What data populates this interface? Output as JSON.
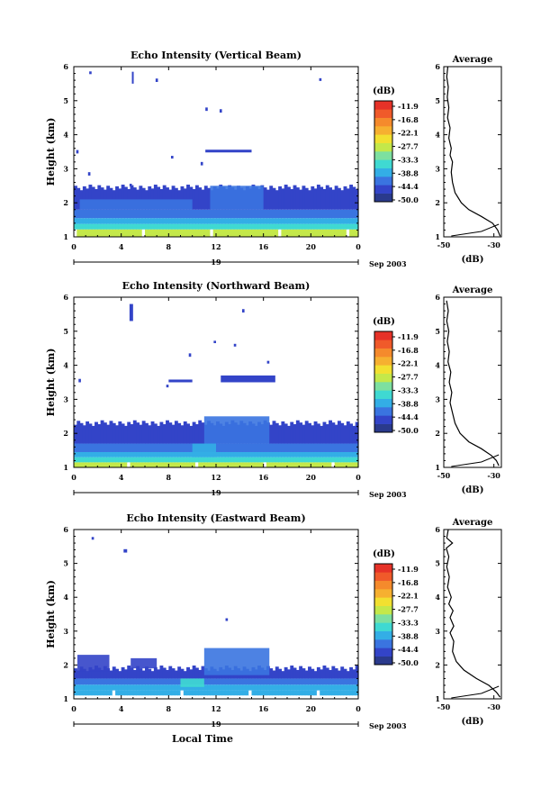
{
  "chart_data": [
    {
      "type": "heatmap",
      "title": "Echo Intensity (Vertical Beam)",
      "xlabel": "",
      "ylabel": "Height (km)",
      "xlim": [
        0,
        24
      ],
      "ylim": [
        1,
        6
      ],
      "xticks": [
        "0",
        "4",
        "8",
        "12",
        "16",
        "20",
        "0"
      ],
      "yticks": [
        "1",
        "2",
        "3",
        "4",
        "5",
        "6"
      ],
      "date_label": "19",
      "date_suffix": "Sep 2003",
      "colorbar": {
        "unit": "(dB)",
        "labels": [
          "-11.9",
          "-16.8",
          "-22.1",
          "-27.7",
          "-33.3",
          "-38.8",
          "-44.4",
          "-50.0"
        ]
      },
      "layers": [
        {
          "h0": 1.0,
          "h1": 1.22,
          "level": 6
        },
        {
          "h0": 1.22,
          "h1": 1.38,
          "level": 4
        },
        {
          "h0": 1.38,
          "h1": 1.55,
          "level": 3
        },
        {
          "h0": 1.55,
          "h1": 1.8,
          "level": 2
        },
        {
          "h0": 1.8,
          "h1": 2.45,
          "level": 1
        }
      ],
      "patches": [
        {
          "t0": 11.5,
          "t1": 16.0,
          "h0": 1.8,
          "h1": 2.5,
          "level": 2
        },
        {
          "t0": 0.5,
          "t1": 10.0,
          "h0": 1.8,
          "h1": 2.1,
          "level": 2
        }
      ],
      "speckles": [
        {
          "t0": 4.9,
          "t1": 5.0,
          "h0": 5.5,
          "h1": 5.85
        },
        {
          "t0": 1.3,
          "t1": 1.5,
          "h0": 5.78,
          "h1": 5.86
        },
        {
          "t0": 6.9,
          "t1": 7.1,
          "h0": 5.55,
          "h1": 5.65
        },
        {
          "t0": 11.1,
          "t1": 11.3,
          "h0": 4.7,
          "h1": 4.8
        },
        {
          "t0": 12.3,
          "t1": 12.5,
          "h0": 4.65,
          "h1": 4.75
        },
        {
          "t0": 20.7,
          "t1": 20.9,
          "h0": 5.58,
          "h1": 5.66
        },
        {
          "t0": 11.1,
          "t1": 15.0,
          "h0": 3.48,
          "h1": 3.56
        },
        {
          "t0": 8.2,
          "t1": 8.4,
          "h0": 3.3,
          "h1": 3.38
        },
        {
          "t0": 10.7,
          "t1": 10.9,
          "h0": 3.1,
          "h1": 3.2
        },
        {
          "t0": 0.2,
          "t1": 0.4,
          "h0": 3.45,
          "h1": 3.55
        },
        {
          "t0": 1.2,
          "t1": 1.4,
          "h0": 2.8,
          "h1": 2.9
        },
        {
          "t0": 4.7,
          "t1": 4.9,
          "h0": 2.48,
          "h1": 2.56
        }
      ],
      "avg_profile": {
        "title": "Average",
        "xlabel": "(dB)",
        "xlim": [
          -50,
          -27
        ],
        "xticks": [
          "-50",
          "-30"
        ],
        "yticks": [
          "1",
          "2",
          "3",
          "4",
          "5",
          "6"
        ],
        "points": [
          [
            -27.5,
            1.02
          ],
          [
            -28.5,
            1.2
          ],
          [
            -30.5,
            1.4
          ],
          [
            -35,
            1.6
          ],
          [
            -40,
            1.8
          ],
          [
            -43,
            2.0
          ],
          [
            -45.5,
            2.3
          ],
          [
            -46.5,
            2.6
          ],
          [
            -47,
            2.9
          ],
          [
            -46.5,
            3.2
          ],
          [
            -47.5,
            3.4
          ],
          [
            -47,
            3.6
          ],
          [
            -48,
            3.9
          ],
          [
            -47.5,
            4.2
          ],
          [
            -48.5,
            4.5
          ],
          [
            -48,
            4.8
          ],
          [
            -48.6,
            5.1
          ],
          [
            -48.2,
            5.4
          ],
          [
            -48.8,
            5.7
          ],
          [
            -48.4,
            6.0
          ]
        ]
      }
    },
    {
      "type": "heatmap",
      "title": "Echo Intensity (Northward Beam)",
      "xlabel": "",
      "ylabel": "Height (km)",
      "xlim": [
        0,
        24
      ],
      "ylim": [
        1,
        6
      ],
      "xticks": [
        "0",
        "4",
        "8",
        "12",
        "16",
        "20",
        "0"
      ],
      "yticks": [
        "1",
        "2",
        "3",
        "4",
        "5",
        "6"
      ],
      "date_label": "19",
      "date_suffix": "Sep 2003",
      "colorbar": {
        "unit": "(dB)",
        "labels": [
          "-11.9",
          "-16.8",
          "-22.1",
          "-27.7",
          "-33.3",
          "-38.8",
          "-44.4",
          "-50.0"
        ]
      },
      "layers": [
        {
          "h0": 1.0,
          "h1": 1.15,
          "level": 6
        },
        {
          "h0": 1.15,
          "h1": 1.3,
          "level": 4
        },
        {
          "h0": 1.3,
          "h1": 1.45,
          "level": 3
        },
        {
          "h0": 1.45,
          "h1": 1.7,
          "level": 2
        },
        {
          "h0": 1.7,
          "h1": 2.3,
          "level": 1
        }
      ],
      "patches": [
        {
          "t0": 11.0,
          "t1": 16.5,
          "h0": 1.7,
          "h1": 2.5,
          "level": 2
        },
        {
          "t0": 10.0,
          "t1": 12.0,
          "h0": 1.3,
          "h1": 1.7,
          "level": 3
        }
      ],
      "speckles": [
        {
          "t0": 4.7,
          "t1": 5.0,
          "h0": 5.3,
          "h1": 5.8
        },
        {
          "t0": 14.2,
          "t1": 14.4,
          "h0": 5.55,
          "h1": 5.65
        },
        {
          "t0": 11.8,
          "t1": 12.0,
          "h0": 4.65,
          "h1": 4.72
        },
        {
          "t0": 13.5,
          "t1": 13.7,
          "h0": 4.55,
          "h1": 4.63
        },
        {
          "t0": 9.7,
          "t1": 9.9,
          "h0": 4.25,
          "h1": 4.35
        },
        {
          "t0": 16.3,
          "t1": 16.5,
          "h0": 4.05,
          "h1": 4.13
        },
        {
          "t0": 12.4,
          "t1": 17.0,
          "h0": 3.5,
          "h1": 3.7
        },
        {
          "t0": 8.0,
          "t1": 10.0,
          "h0": 3.5,
          "h1": 3.58
        },
        {
          "t0": 7.8,
          "t1": 8.0,
          "h0": 3.35,
          "h1": 3.43
        },
        {
          "t0": 0.4,
          "t1": 0.6,
          "h0": 3.5,
          "h1": 3.6
        }
      ],
      "avg_profile": {
        "title": "Average",
        "xlabel": "(dB)",
        "xlim": [
          -50,
          -27
        ],
        "xticks": [
          "-50",
          "-30"
        ],
        "yticks": [
          "1",
          "2",
          "3",
          "4",
          "5",
          "6"
        ],
        "points": [
          [
            -28,
            1.05
          ],
          [
            -29,
            1.2
          ],
          [
            -31,
            1.35
          ],
          [
            -35,
            1.55
          ],
          [
            -40,
            1.75
          ],
          [
            -43.5,
            2.0
          ],
          [
            -45.5,
            2.3
          ],
          [
            -46.5,
            2.6
          ],
          [
            -47.5,
            2.9
          ],
          [
            -46.8,
            3.2
          ],
          [
            -47.8,
            3.5
          ],
          [
            -47.2,
            3.8
          ],
          [
            -48.3,
            4.1
          ],
          [
            -47.8,
            4.4
          ],
          [
            -48.6,
            4.7
          ],
          [
            -48,
            5.0
          ],
          [
            -48.8,
            5.3
          ],
          [
            -48.2,
            5.6
          ],
          [
            -48.9,
            5.9
          ]
        ]
      }
    },
    {
      "type": "heatmap",
      "title": "Echo Intensity (Eastward Beam)",
      "xlabel": "Local Time",
      "ylabel": "Height (km)",
      "xlim": [
        0,
        24
      ],
      "ylim": [
        1,
        6
      ],
      "xticks": [
        "0",
        "4",
        "8",
        "12",
        "16",
        "20",
        "0"
      ],
      "yticks": [
        "1",
        "2",
        "3",
        "4",
        "5",
        "6"
      ],
      "date_label": "19",
      "date_suffix": "Sep 2003",
      "colorbar": {
        "unit": "(dB)",
        "labels": [
          "-11.9",
          "-16.8",
          "-22.1",
          "-27.7",
          "-33.3",
          "-38.8",
          "-44.4",
          "-50.0"
        ]
      },
      "layers": [
        {
          "h0": 1.1,
          "h1": 1.25,
          "level": 3
        },
        {
          "h0": 1.25,
          "h1": 1.42,
          "level": 3
        },
        {
          "h0": 1.42,
          "h1": 1.6,
          "level": 2
        },
        {
          "h0": 1.6,
          "h1": 1.9,
          "level": 1
        }
      ],
      "patches": [
        {
          "t0": 11.0,
          "t1": 16.5,
          "h0": 1.7,
          "h1": 2.5,
          "level": 2
        },
        {
          "t0": 0.3,
          "t1": 3.0,
          "h0": 1.8,
          "h1": 2.3,
          "level": 1
        },
        {
          "t0": 4.8,
          "t1": 7.0,
          "h0": 1.9,
          "h1": 2.2,
          "level": 1
        },
        {
          "t0": 9.0,
          "t1": 11.0,
          "h0": 1.35,
          "h1": 1.6,
          "level": 4
        }
      ],
      "speckles": [
        {
          "t0": 1.5,
          "t1": 1.7,
          "h0": 5.7,
          "h1": 5.78
        },
        {
          "t0": 4.2,
          "t1": 4.5,
          "h0": 5.32,
          "h1": 5.42
        },
        {
          "t0": 12.8,
          "t1": 13.0,
          "h0": 3.3,
          "h1": 3.38
        }
      ],
      "avg_profile": {
        "title": "Average",
        "xlabel": "(dB)",
        "xlim": [
          -50,
          -27
        ],
        "xticks": [
          "-50",
          "-30"
        ],
        "yticks": [
          "1",
          "2",
          "3",
          "4",
          "5",
          "6"
        ],
        "points": [
          [
            -27.5,
            1.05
          ],
          [
            -29,
            1.2
          ],
          [
            -32,
            1.4
          ],
          [
            -37,
            1.6
          ],
          [
            -42,
            1.85
          ],
          [
            -45,
            2.1
          ],
          [
            -46.5,
            2.4
          ],
          [
            -46,
            2.7
          ],
          [
            -47.5,
            2.95
          ],
          [
            -46,
            3.15
          ],
          [
            -47.5,
            3.4
          ],
          [
            -46.3,
            3.6
          ],
          [
            -48,
            3.8
          ],
          [
            -47,
            4.0
          ],
          [
            -48.5,
            4.3
          ],
          [
            -47.8,
            4.6
          ],
          [
            -48.8,
            4.9
          ],
          [
            -48,
            5.2
          ],
          [
            -49,
            5.45
          ],
          [
            -46.5,
            5.6
          ],
          [
            -48.8,
            5.75
          ],
          [
            -48.2,
            6.0
          ]
        ]
      }
    }
  ],
  "colors": {
    "levels": [
      "#2a3a8c",
      "#3344c8",
      "#3a74e0",
      "#33aee6",
      "#3fd9d2",
      "#7de0a0",
      "#c4e84a",
      "#f2e030",
      "#f6b030",
      "#f58a2c",
      "#f05a2a",
      "#e63228"
    ],
    "background": "#ffffff",
    "axis": "#000000"
  }
}
